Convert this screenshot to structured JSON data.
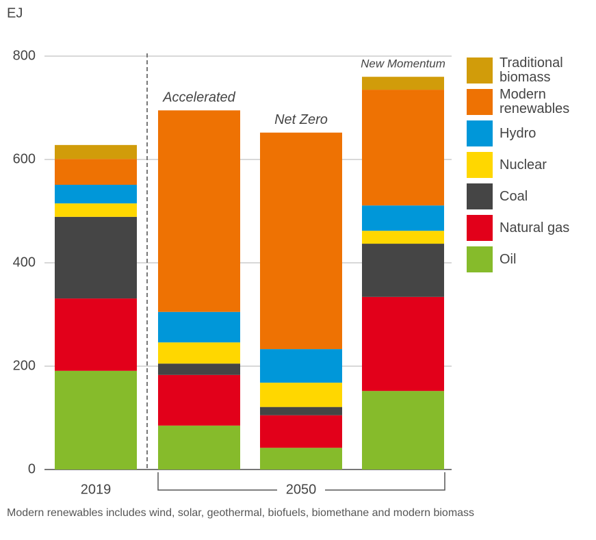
{
  "chart_data": {
    "type": "stacked-bar",
    "y_label": "EJ",
    "categories": [
      "2019",
      "Accelerated",
      "Net Zero",
      "New Momentum"
    ],
    "group_label": "2050",
    "series": [
      {
        "name": "Oil",
        "color": "#86bb2b",
        "values": [
          191,
          85,
          42,
          152
        ]
      },
      {
        "name": "Natural gas",
        "color": "#e2001a",
        "values": [
          140,
          98,
          63,
          182
        ]
      },
      {
        "name": "Coal",
        "color": "#454545",
        "values": [
          158,
          22,
          16,
          103
        ]
      },
      {
        "name": "Nuclear",
        "color": "#ffd700",
        "values": [
          26,
          41,
          47,
          25
        ]
      },
      {
        "name": "Hydro",
        "color": "#0097d9",
        "values": [
          36,
          59,
          65,
          49
        ]
      },
      {
        "name": "Modern renewables",
        "color": "#ee7203",
        "values": [
          50,
          390,
          419,
          224
        ]
      },
      {
        "name": "Traditional biomass",
        "color": "#d19c0a",
        "values": [
          27,
          0,
          0,
          25
        ]
      }
    ],
    "ylim": [
      0,
      800
    ],
    "yticks": [
      0,
      200,
      400,
      600,
      800
    ],
    "grid": true,
    "note": "Modern renewables includes wind, solar, geothermal, biofuels, biomethane and modern biomass"
  }
}
